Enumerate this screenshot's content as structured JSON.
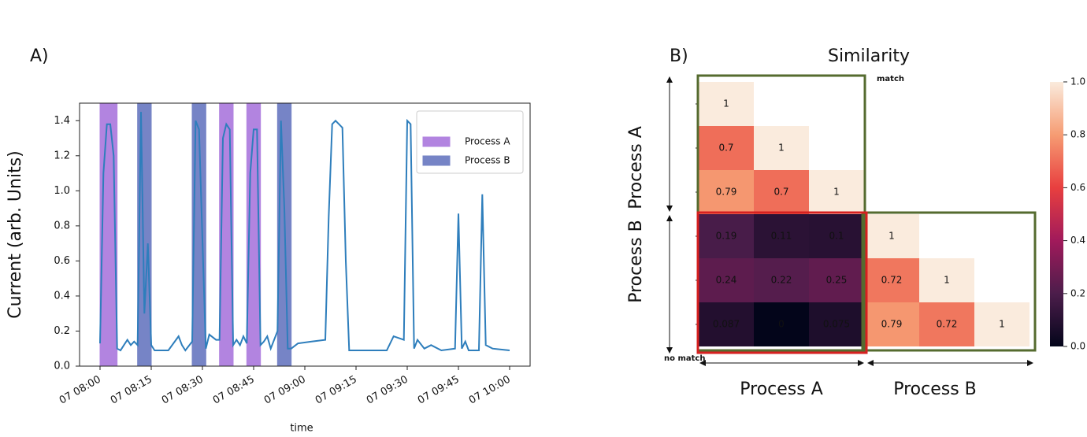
{
  "chart_data": [
    {
      "type": "line",
      "label": "A)",
      "xlabel": "time",
      "ylabel": "Current (arb. Units)",
      "color": "#2e7ebc",
      "x": [
        "07 08:00",
        "07 08:01",
        "07 08:02",
        "07 08:03",
        "07 08:04",
        "07 08:05",
        "07 08:06",
        "07 08:07",
        "07 08:08",
        "07 08:09",
        "07 08:10",
        "07 08:11",
        "07 08:12",
        "07 08:13",
        "07 08:14",
        "07 08:15",
        "07 08:16",
        "07 08:20",
        "07 08:23",
        "07 08:24",
        "07 08:25",
        "07 08:27",
        "07 08:28",
        "07 08:29",
        "07 08:30",
        "07 08:31",
        "07 08:32",
        "07 08:34",
        "07 08:35",
        "07 08:36",
        "07 08:37",
        "07 08:38",
        "07 08:39",
        "07 08:40",
        "07 08:41",
        "07 08:42",
        "07 08:43",
        "07 08:44",
        "07 08:45",
        "07 08:46",
        "07 08:47",
        "07 08:48",
        "07 08:49",
        "07 08:50",
        "07 08:52",
        "07 08:53",
        "07 08:54",
        "07 08:55",
        "07 08:56",
        "07 08:58",
        "07 09:02",
        "07 09:06",
        "07 09:07",
        "07 09:08",
        "07 09:09",
        "07 09:10",
        "07 09:11",
        "07 09:12",
        "07 09:13",
        "07 09:20",
        "07 09:24",
        "07 09:26",
        "07 09:29",
        "07 09:30",
        "07 09:31",
        "07 09:32",
        "07 09:33",
        "07 09:35",
        "07 09:37",
        "07 09:40",
        "07 09:44",
        "07 09:45",
        "07 09:46",
        "07 09:47",
        "07 09:48",
        "07 09:51",
        "07 09:52",
        "07 09:53",
        "07 09:55",
        "07 10:00"
      ],
      "values": [
        0.13,
        1.1,
        1.38,
        1.38,
        1.2,
        0.1,
        0.09,
        0.12,
        0.15,
        0.12,
        0.14,
        0.12,
        1.45,
        0.3,
        0.7,
        0.12,
        0.09,
        0.09,
        0.17,
        0.12,
        0.09,
        0.14,
        1.4,
        1.35,
        0.72,
        0.1,
        0.18,
        0.15,
        0.15,
        1.3,
        1.38,
        1.35,
        0.12,
        0.15,
        0.12,
        0.17,
        0.13,
        1.1,
        1.35,
        1.35,
        0.12,
        0.14,
        0.17,
        0.1,
        0.2,
        1.4,
        0.9,
        0.1,
        0.1,
        0.13,
        0.14,
        0.15,
        0.85,
        1.38,
        1.4,
        1.38,
        1.36,
        0.6,
        0.09,
        0.09,
        0.09,
        0.17,
        0.15,
        1.4,
        1.38,
        0.1,
        0.15,
        0.1,
        0.12,
        0.09,
        0.1,
        0.87,
        0.1,
        0.14,
        0.09,
        0.09,
        0.98,
        0.12,
        0.1,
        0.09
      ],
      "xlim": [
        "07 07:54",
        "07 10:06"
      ],
      "xticks": [
        "07 08:00",
        "07 08:15",
        "07 08:30",
        "07 08:45",
        "07 09:00",
        "07 09:15",
        "07 09:30",
        "07 09:45",
        "07 10:00"
      ],
      "ylim": [
        0,
        1.5
      ],
      "yticks": [
        {
          "value": 0,
          "label": "0.0"
        },
        0.2,
        0.4,
        0.6,
        0.8,
        {
          "value": 1,
          "label": "1.0"
        },
        1.2,
        1.4
      ],
      "spans": [
        {
          "name": "Process A",
          "color": "#a56fdb",
          "ranges": [
            [
              "07 08:00",
              "07 08:05"
            ],
            [
              "07 08:35",
              "07 08:39"
            ],
            [
              "07 08:43",
              "07 08:47"
            ]
          ]
        },
        {
          "name": "Process B",
          "color": "#5f6fbd",
          "ranges": [
            [
              "07 08:11",
              "07 08:15"
            ],
            [
              "07 08:27",
              "07 08:31"
            ],
            [
              "07 08:52",
              "07 08:56"
            ]
          ]
        }
      ],
      "legend": "upper right"
    },
    {
      "type": "heatmap",
      "label": "B)",
      "title": "Similarity",
      "matrix": [
        [
          1,
          null,
          null,
          null,
          null,
          null
        ],
        [
          0.7,
          1,
          null,
          null,
          null,
          null
        ],
        [
          0.79,
          0.7,
          1,
          null,
          null,
          null
        ],
        [
          0.19,
          0.11,
          0.1,
          1,
          null,
          null
        ],
        [
          0.24,
          0.22,
          0.25,
          0.72,
          1,
          null
        ],
        [
          0.087,
          0,
          0.075,
          0.79,
          0.72,
          1
        ]
      ],
      "xlabels": [
        "Process A",
        "Process B"
      ],
      "ylabels": [
        "Process A",
        "Process B"
      ],
      "clim": [
        0,
        1
      ],
      "cticks": [
        {
          "value": 0,
          "label": "0.0"
        },
        0.2,
        0.4,
        0.6,
        0.8,
        {
          "value": 1,
          "label": "1.0"
        }
      ],
      "colormap": [
        "#03051a",
        "#4c1d4b",
        "#a11a5b",
        "#e83f3f",
        "#f69c73",
        "#faebdd"
      ],
      "annotations": [
        {
          "text": "match",
          "color": "#556b2f"
        },
        {
          "text": "no match",
          "color": "#d62020"
        }
      ]
    }
  ]
}
